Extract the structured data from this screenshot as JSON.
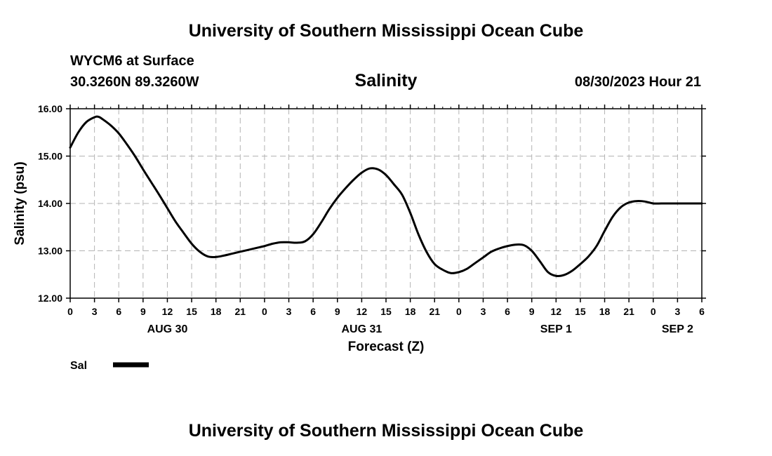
{
  "header": {
    "title": "University of Southern Mississippi Ocean Cube",
    "station": "WYCM6 at Surface",
    "coords": "30.3260N  89.3260W",
    "variable_title": "Salinity",
    "datetime": "08/30/2023 Hour 21",
    "footer_title": "University of Southern Mississippi Ocean Cube"
  },
  "chart_data": {
    "type": "line",
    "title": "Salinity",
    "xlabel": "Forecast (Z)",
    "ylabel": "Salinity (psu)",
    "ylim": [
      12.0,
      16.0
    ],
    "xlim": [
      0,
      78
    ],
    "yticks": [
      "12.00",
      "13.00",
      "14.00",
      "15.00",
      "16.00"
    ],
    "xtick_labels": [
      "0",
      "3",
      "6",
      "9",
      "12",
      "15",
      "18",
      "21",
      "0",
      "3",
      "6",
      "9",
      "12",
      "15",
      "18",
      "21",
      "0",
      "3",
      "6",
      "9",
      "12",
      "15",
      "18",
      "21",
      "0",
      "3",
      "6"
    ],
    "day_labels": [
      {
        "label": "AUG 30",
        "hour": 12
      },
      {
        "label": "AUG 31",
        "hour": 36
      },
      {
        "label": "SEP 1",
        "hour": 60
      },
      {
        "label": "SEP 2",
        "hour": 75
      }
    ],
    "grid": true,
    "legend": {
      "label": "Sal",
      "position": "bottom-left"
    },
    "series": [
      {
        "name": "Sal",
        "color": "#000000",
        "x": [
          0,
          1,
          2,
          3,
          3.5,
          4,
          5,
          6,
          7,
          8,
          9,
          10,
          11,
          12,
          13,
          14,
          15,
          16,
          17,
          18,
          19,
          20,
          21,
          22,
          23,
          24,
          25,
          26,
          27,
          28,
          29,
          30,
          31,
          32,
          33,
          34,
          35,
          36,
          37,
          38,
          39,
          40,
          41,
          42,
          43,
          44,
          45,
          46,
          47,
          48,
          49,
          50,
          51,
          52,
          53,
          54,
          55,
          56,
          57,
          58,
          59,
          60,
          61,
          62,
          63,
          64,
          65,
          66,
          67,
          68,
          69,
          70,
          71,
          72,
          73,
          74,
          75,
          76,
          77,
          78
        ],
        "y": [
          15.18,
          15.5,
          15.72,
          15.82,
          15.83,
          15.78,
          15.65,
          15.48,
          15.25,
          15.0,
          14.72,
          14.45,
          14.18,
          13.9,
          13.62,
          13.38,
          13.15,
          12.98,
          12.88,
          12.87,
          12.9,
          12.94,
          12.98,
          13.02,
          13.06,
          13.1,
          13.15,
          13.18,
          13.18,
          13.17,
          13.2,
          13.35,
          13.6,
          13.88,
          14.12,
          14.32,
          14.5,
          14.65,
          14.74,
          14.72,
          14.6,
          14.4,
          14.18,
          13.8,
          13.35,
          12.98,
          12.72,
          12.6,
          12.53,
          12.55,
          12.62,
          12.74,
          12.86,
          12.98,
          13.05,
          13.1,
          13.13,
          13.12,
          13.0,
          12.78,
          12.55,
          12.47,
          12.49,
          12.58,
          12.72,
          12.88,
          13.1,
          13.42,
          13.72,
          13.92,
          14.02,
          14.05,
          14.04,
          14.0,
          14.0,
          14.0,
          14.0,
          14.0,
          14.0,
          14.0
        ]
      }
    ]
  }
}
